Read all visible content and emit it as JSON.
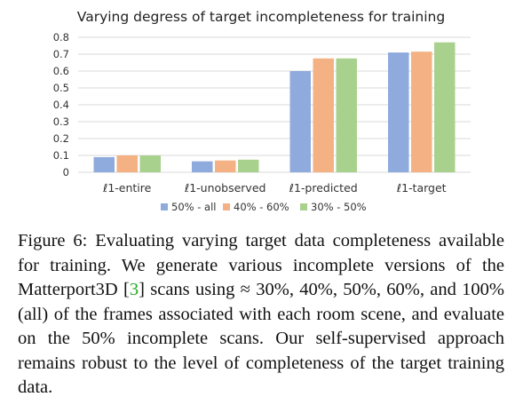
{
  "chart_data": {
    "type": "bar",
    "title": "Varying degress of target incompleteness for training",
    "categories": [
      "ℓ1-entire",
      "ℓ1-unobserved",
      "ℓ1-predicted",
      "ℓ1-target"
    ],
    "series": [
      {
        "name": "50% - all",
        "values": [
          0.09,
          0.065,
          0.6,
          0.71
        ]
      },
      {
        "name": "40% - 60%",
        "values": [
          0.1,
          0.07,
          0.675,
          0.715
        ]
      },
      {
        "name": "30% - 50%",
        "values": [
          0.1,
          0.075,
          0.675,
          0.77
        ]
      }
    ],
    "yticks": [
      "0",
      "0.1",
      "0.2",
      "0.3",
      "0.4",
      "0.5",
      "0.6",
      "0.7",
      "0.8"
    ],
    "ylim": [
      0,
      0.8
    ],
    "grid": true,
    "legend": "bottom",
    "colors": [
      "#8faadc",
      "#f4b183",
      "#a9d18e"
    ]
  },
  "caption": {
    "label": "Figure 6:",
    "text_before": " Evaluating varying target data completeness available for training. We generate various incomplete versions of the Matterport3D [",
    "cite": "3",
    "text_after": "] scans using ≈ 30%, 40%, 50%, 60%, and 100% (all) of the frames associated with each room scene, and evaluate on the 50% incomplete scans. Our self-supervised approach remains robust to the level of completeness of the target training data."
  }
}
